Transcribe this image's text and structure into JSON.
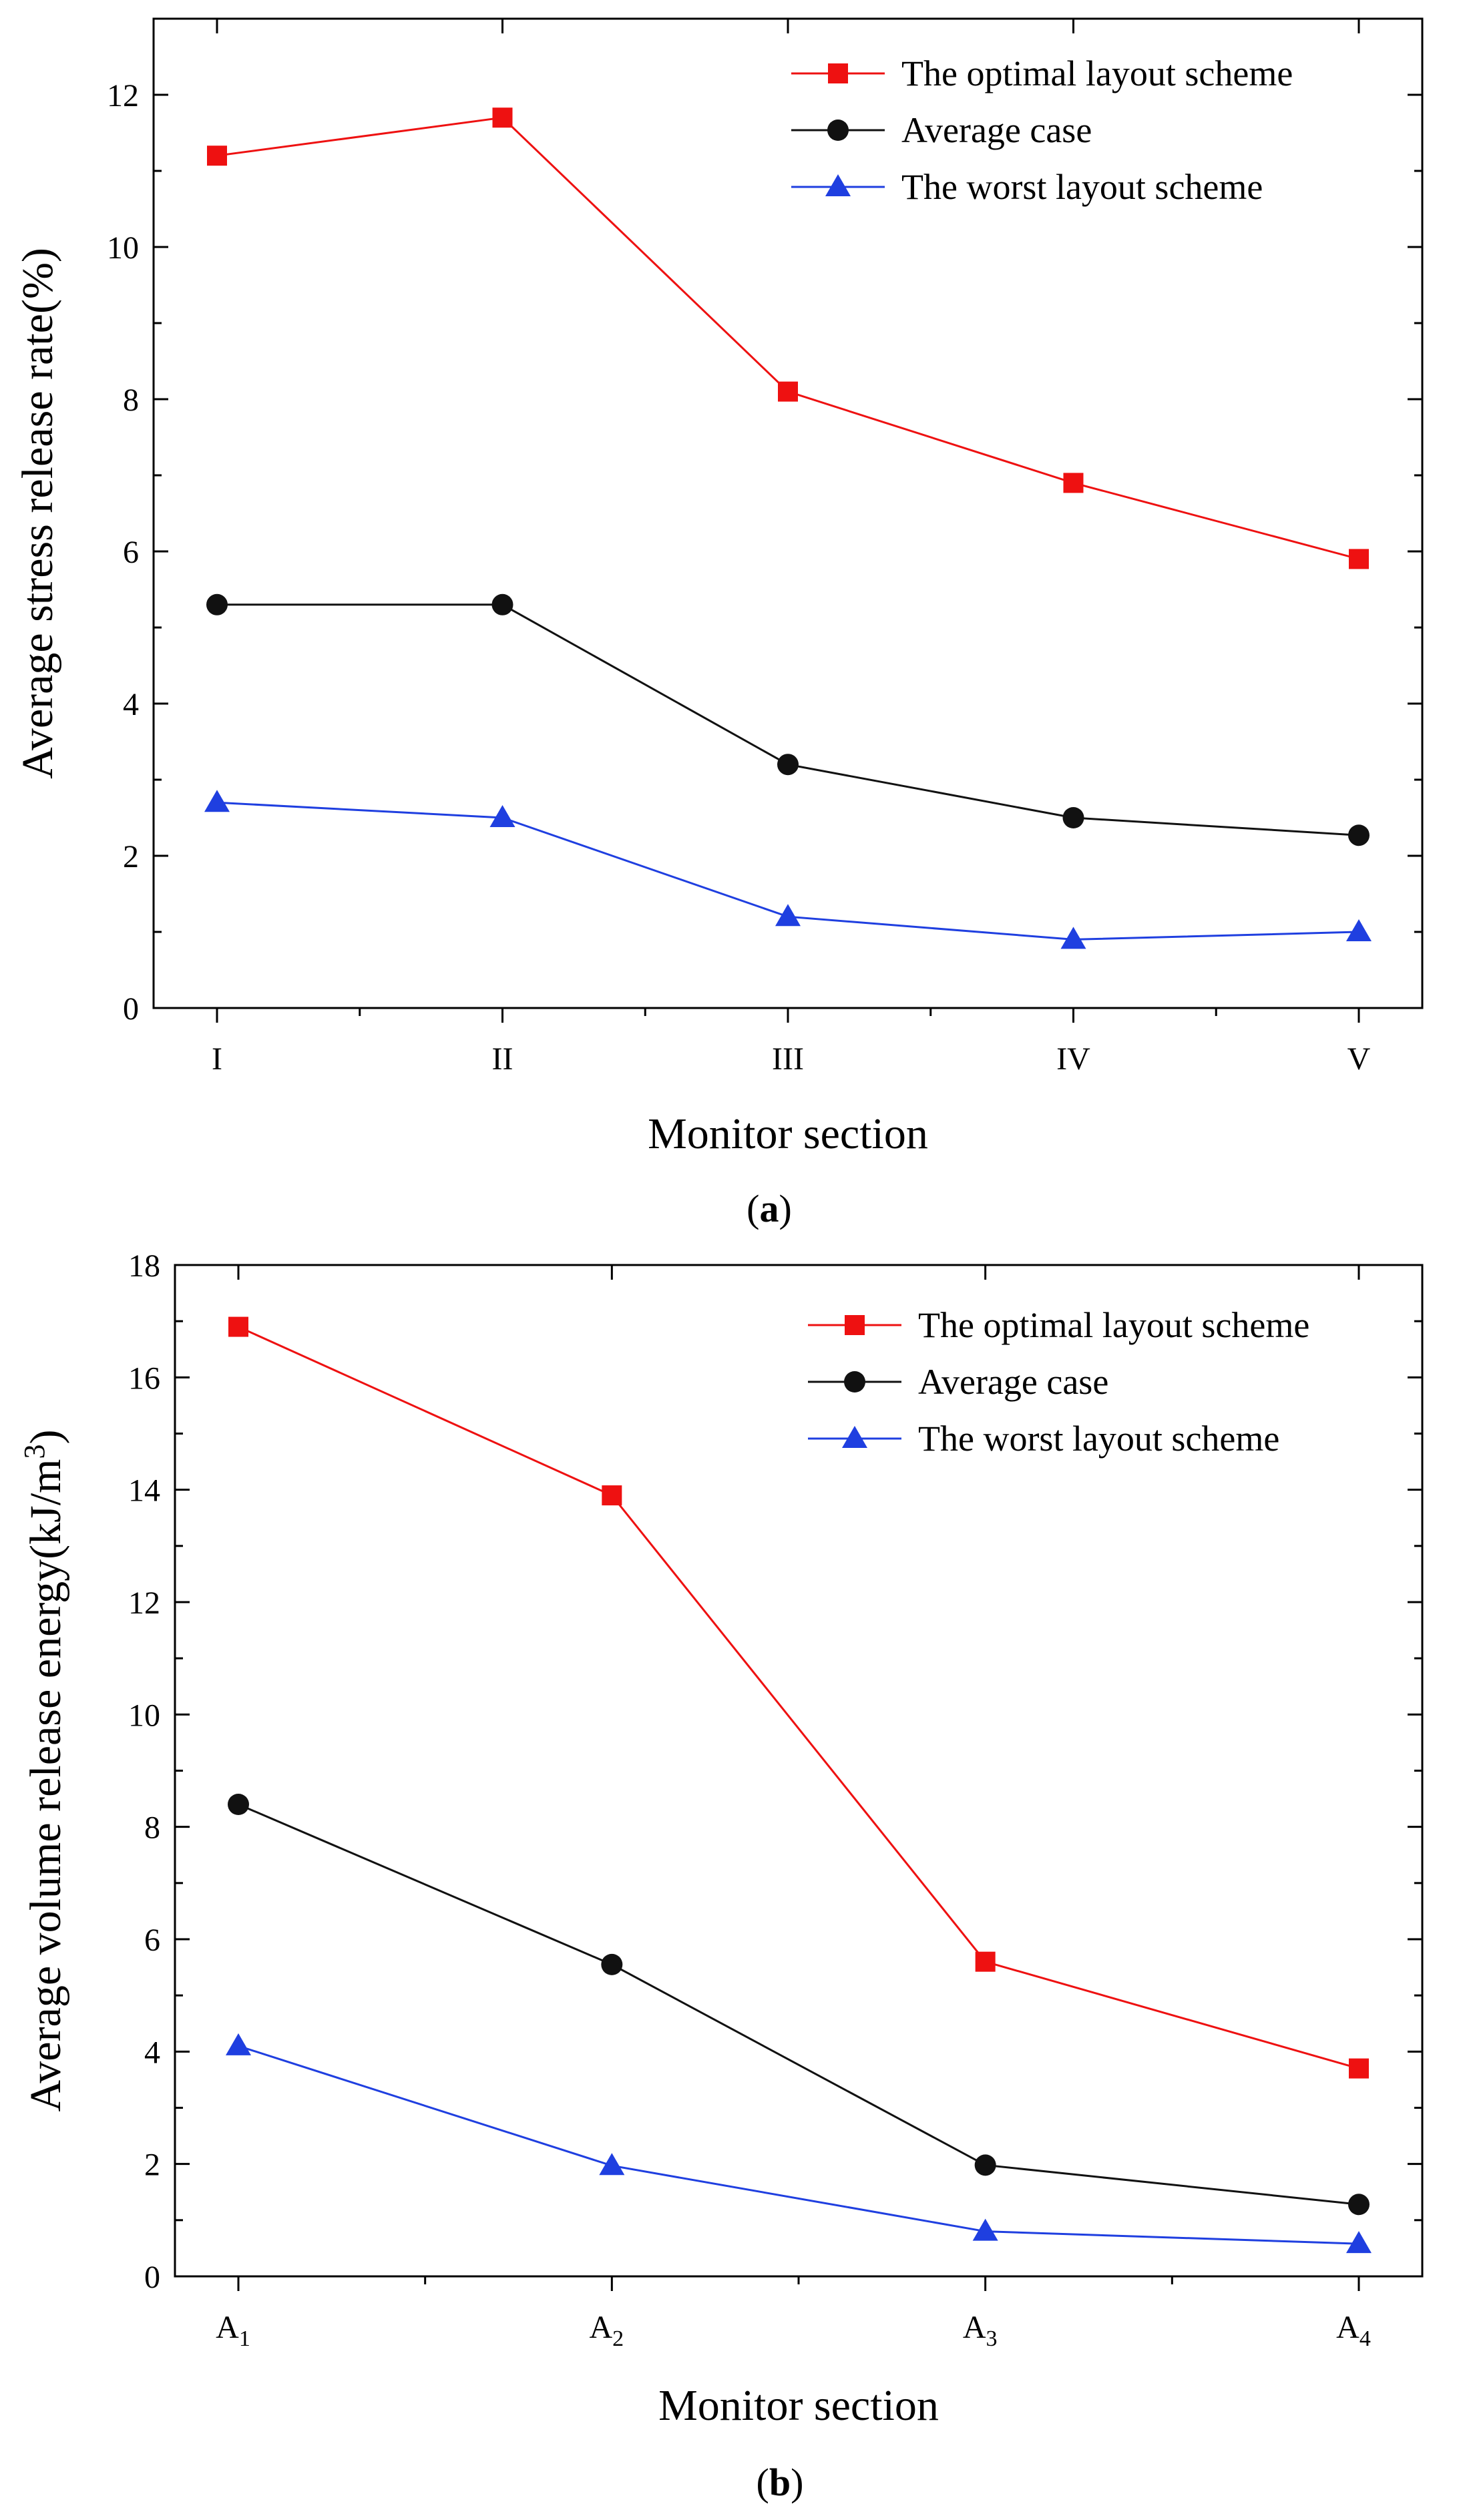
{
  "chart_data": [
    {
      "type": "line",
      "panel_label": "a",
      "caption_open": "(",
      "caption_close": ")",
      "categories": [
        "I",
        "II",
        "III",
        "IV",
        "V"
      ],
      "category_subscripts": [
        "",
        "",
        "",
        "",
        ""
      ],
      "xlabel": "Monitor section",
      "ylabel": "Average stress release rate(%)",
      "ylim": [
        0,
        13
      ],
      "yticks": [
        0,
        2,
        4,
        6,
        8,
        10,
        12
      ],
      "legend_position": "top-right",
      "series": [
        {
          "name": "The optimal layout scheme",
          "color": "#ee1111",
          "marker": "square",
          "values": [
            11.2,
            11.7,
            8.1,
            6.9,
            5.9
          ]
        },
        {
          "name": "Average case",
          "color": "#111111",
          "marker": "circle",
          "values": [
            5.3,
            5.3,
            3.2,
            2.5,
            2.27
          ]
        },
        {
          "name": "The worst layout scheme",
          "color": "#1f3fe0",
          "marker": "triangle",
          "values": [
            2.7,
            2.5,
            1.2,
            0.9,
            1.0
          ]
        }
      ]
    },
    {
      "type": "line",
      "panel_label": "b",
      "caption_open": "(",
      "caption_close": ")",
      "categories": [
        "A",
        "A",
        "A",
        "A"
      ],
      "category_subscripts": [
        "1",
        "2",
        "3",
        "4"
      ],
      "xlabel": "Monitor section",
      "ylabel": "Average volume release energy(kJ/m",
      "ylabel_superscript": "3",
      "ylabel_suffix": ")",
      "ylim": [
        0,
        18
      ],
      "yticks": [
        0,
        2,
        4,
        6,
        8,
        10,
        12,
        14,
        16,
        18
      ],
      "legend_position": "top-right",
      "series": [
        {
          "name": "The optimal layout scheme",
          "color": "#ee1111",
          "marker": "square",
          "values": [
            16.9,
            13.9,
            5.6,
            3.7
          ]
        },
        {
          "name": "Average case",
          "color": "#111111",
          "marker": "circle",
          "values": [
            8.4,
            5.55,
            1.98,
            1.28
          ]
        },
        {
          "name": "The worst layout scheme",
          "color": "#1f3fe0",
          "marker": "triangle",
          "values": [
            4.1,
            1.97,
            0.8,
            0.58
          ]
        }
      ]
    }
  ]
}
